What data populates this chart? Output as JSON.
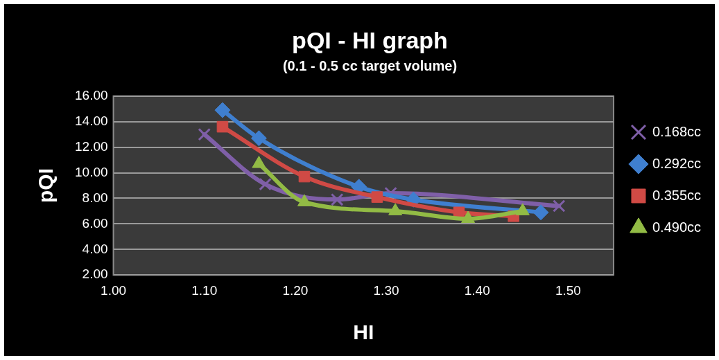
{
  "chart_data": {
    "type": "line",
    "title": "pQI - HI graph",
    "subtitle": "(0.1 - 0.5 cc target volume)",
    "xlabel": "HI",
    "ylabel": "pQI",
    "xlim": [
      1.0,
      1.55
    ],
    "xticks": [
      {
        "value": 1.0,
        "label": "1.00"
      },
      {
        "value": 1.1,
        "label": "1.10"
      },
      {
        "value": 1.2,
        "label": "1.20"
      },
      {
        "value": 1.3,
        "label": "1.30"
      },
      {
        "value": 1.4,
        "label": "1.40"
      },
      {
        "value": 1.5,
        "label": "1.50"
      }
    ],
    "ylim": [
      2,
      16
    ],
    "yticks": [
      {
        "value": 2,
        "label": "2.00"
      },
      {
        "value": 4,
        "label": "4.00"
      },
      {
        "value": 6,
        "label": "6.00"
      },
      {
        "value": 8,
        "label": "8.00"
      },
      {
        "value": 10,
        "label": "10.00"
      },
      {
        "value": 12,
        "label": "12.00"
      },
      {
        "value": 14,
        "label": "14.00"
      },
      {
        "value": 16,
        "label": "16.00"
      }
    ],
    "grid": "y",
    "legend": "right",
    "series": [
      {
        "name": "0.168cc",
        "color": "#7f5fa8",
        "marker": "cross",
        "x": [
          1.1,
          1.167,
          1.246,
          1.305,
          1.49
        ],
        "values": [
          13.0,
          9.1,
          7.9,
          8.4,
          7.4
        ]
      },
      {
        "name": "0.292cc",
        "color": "#3f7fcf",
        "marker": "diamond",
        "x": [
          1.12,
          1.16,
          1.27,
          1.33,
          1.47
        ],
        "values": [
          14.9,
          12.7,
          8.9,
          7.9,
          6.9
        ]
      },
      {
        "name": "0.355cc",
        "color": "#d04a45",
        "marker": "square",
        "x": [
          1.12,
          1.21,
          1.29,
          1.38,
          1.44
        ],
        "values": [
          13.6,
          9.7,
          8.1,
          6.9,
          6.6
        ]
      },
      {
        "name": "0.490cc",
        "color": "#92bb45",
        "marker": "triangle",
        "x": [
          1.16,
          1.21,
          1.31,
          1.39,
          1.45
        ],
        "values": [
          10.7,
          7.7,
          7.0,
          6.4,
          7.0
        ]
      }
    ]
  }
}
